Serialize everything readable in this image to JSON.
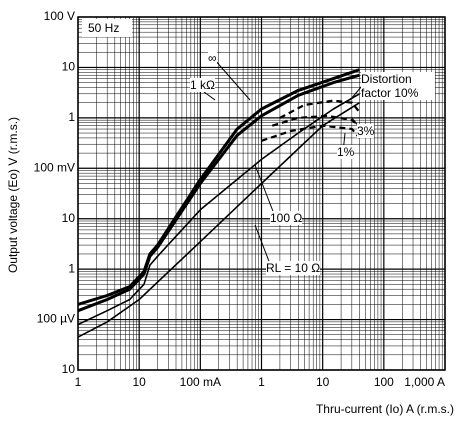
{
  "chart_data": {
    "type": "line",
    "annotation": "50 Hz",
    "x_label": "Thru-current (Io) A (r.m.s.)",
    "y_label": "Output voltage (Eo) V (r.m.s.)",
    "log_x": true,
    "log_y": true,
    "grid": true,
    "xlim": [
      1,
      1000000
    ],
    "xticks": [
      1,
      10,
      {
        "value": 100,
        "label": "100 mA"
      },
      {
        "value": 1000,
        "label": "1"
      },
      {
        "value": 10000,
        "label": "10"
      },
      {
        "value": 100000,
        "label": "100"
      },
      {
        "value": 1000000,
        "label": "1,000 A"
      }
    ],
    "ylim": [
      10,
      100000000
    ],
    "yticks": [
      10,
      {
        "value": 100,
        "label": "100 µV"
      },
      {
        "value": 1000,
        "label": "1"
      },
      {
        "value": 10000,
        "label": "10"
      },
      {
        "value": 100000,
        "label": "100 mV"
      },
      {
        "value": 1000000,
        "label": "1"
      },
      {
        "value": 10000000,
        "label": "10"
      },
      {
        "value": 100000000,
        "label": "100 V"
      }
    ],
    "series": [
      {
        "name": "∞",
        "color": "#000000",
        "line_width": 3,
        "dash": false,
        "x": [
          1,
          3,
          7,
          12,
          15,
          20,
          100,
          400,
          1000,
          4000,
          15000,
          40000
        ],
        "values": [
          200,
          300,
          450,
          900,
          2000,
          3000,
          60000,
          600000,
          1500000,
          3500000,
          6000000,
          9000000
        ]
      },
      {
        "name": "1 kΩ",
        "color": "#000000",
        "line_width": 3,
        "dash": false,
        "x": [
          1,
          3,
          7,
          12,
          15,
          20,
          100,
          400,
          1000,
          4000,
          15000,
          40000
        ],
        "values": [
          150,
          250,
          400,
          800,
          1800,
          2700,
          50000,
          450000,
          1100000,
          2800000,
          5000000,
          7000000
        ]
      },
      {
        "name": "100 Ω",
        "color": "#000000",
        "line_width": 1.6,
        "dash": false,
        "x": [
          1,
          3,
          7,
          12,
          15,
          20,
          100,
          1000,
          4000,
          15000,
          40000
        ],
        "values": [
          80,
          150,
          250,
          500,
          1200,
          1800,
          15000,
          150000,
          500000,
          1500000,
          3000000
        ]
      },
      {
        "name": "RL = 10 Ω",
        "color": "#000000",
        "line_width": 1.6,
        "dash": false,
        "x": [
          1,
          3,
          10,
          100,
          1000,
          10000,
          40000
        ],
        "values": [
          45,
          90,
          250,
          3500,
          50000,
          700000,
          2000000
        ]
      },
      {
        "name": "Distortion factor 10%",
        "color": "#000000",
        "line_width": 2.2,
        "dash": true,
        "x": [
          2000,
          5000,
          15000,
          30000,
          40000
        ],
        "values": [
          1000000,
          1800000,
          2200000,
          2000000,
          1300000
        ]
      },
      {
        "name": "3%",
        "color": "#000000",
        "line_width": 2.2,
        "dash": true,
        "x": [
          1500,
          4000,
          12000,
          30000,
          40000
        ],
        "values": [
          700000,
          1000000,
          1100000,
          900000,
          700000
        ]
      },
      {
        "name": "1%",
        "color": "#000000",
        "line_width": 2.2,
        "dash": true,
        "x": [
          1000,
          3000,
          10000,
          30000,
          40000
        ],
        "values": [
          350000,
          550000,
          700000,
          600000,
          400000
        ]
      }
    ]
  }
}
